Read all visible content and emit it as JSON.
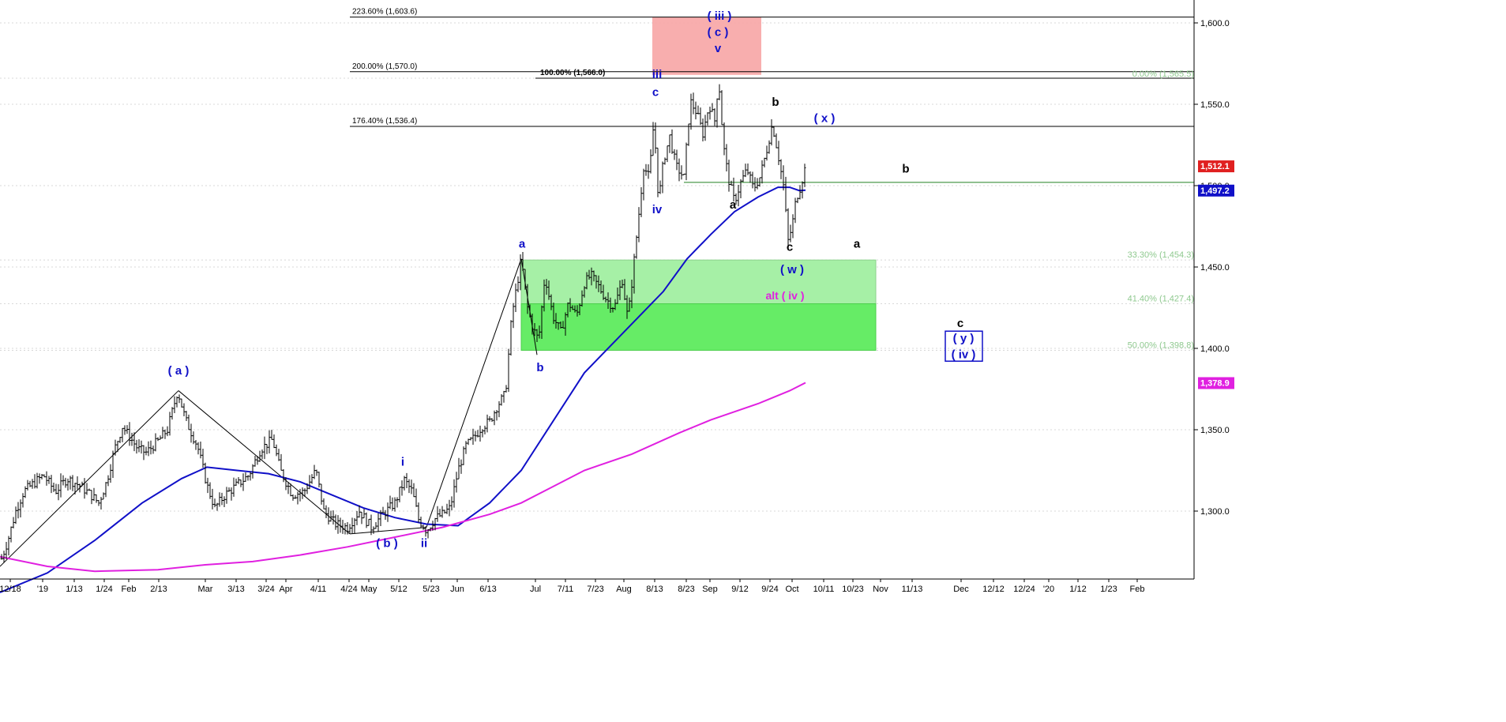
{
  "chart_data": {
    "type": "candlestick",
    "title": "",
    "y_axis_ticks": [
      "1,300.0",
      "1,350.0",
      "1,400.0",
      "1,450.0",
      "1,500.0",
      "1,550.0",
      "1,600.0"
    ],
    "ylim": [
      1256,
      1612
    ],
    "x_axis_ticks": [
      "12/18",
      "'19",
      "1/13",
      "1/24",
      "Feb",
      "2/13",
      "Mar",
      "3/13",
      "3/24",
      "Apr",
      "4/11",
      "4/24",
      "May",
      "5/12",
      "5/23",
      "Jun",
      "6/13",
      "Jul",
      "7/11",
      "7/23",
      "Aug",
      "8/13",
      "8/23",
      "Sep",
      "9/12",
      "9/24",
      "Oct",
      "10/11",
      "10/23",
      "Nov",
      "11/13",
      "Dec",
      "12/12",
      "12/24",
      "'20",
      "1/12",
      "1/23",
      "Feb"
    ],
    "price_path": [
      [
        0,
        1268
      ],
      [
        10,
        1282
      ],
      [
        20,
        1300
      ],
      [
        30,
        1312
      ],
      [
        40,
        1316
      ],
      [
        55,
        1322
      ],
      [
        70,
        1312
      ],
      [
        85,
        1320
      ],
      [
        100,
        1316
      ],
      [
        115,
        1310
      ],
      [
        125,
        1305
      ],
      [
        135,
        1318
      ],
      [
        145,
        1338
      ],
      [
        155,
        1352
      ],
      [
        165,
        1345
      ],
      [
        175,
        1338
      ],
      [
        185,
        1336
      ],
      [
        200,
        1343
      ],
      [
        212,
        1350
      ],
      [
        225,
        1374
      ],
      [
        235,
        1356
      ],
      [
        250,
        1340
      ],
      [
        262,
        1316
      ],
      [
        272,
        1302
      ],
      [
        285,
        1310
      ],
      [
        300,
        1316
      ],
      [
        315,
        1322
      ],
      [
        330,
        1338
      ],
      [
        345,
        1344
      ],
      [
        355,
        1325
      ],
      [
        370,
        1310
      ],
      [
        385,
        1312
      ],
      [
        400,
        1325
      ],
      [
        410,
        1300
      ],
      [
        425,
        1292
      ],
      [
        440,
        1290
      ],
      [
        455,
        1300
      ],
      [
        470,
        1290
      ],
      [
        485,
        1298
      ],
      [
        500,
        1305
      ],
      [
        512,
        1319
      ],
      [
        522,
        1312
      ],
      [
        530,
        1295
      ],
      [
        540,
        1288
      ],
      [
        550,
        1295
      ],
      [
        560,
        1298
      ],
      [
        570,
        1302
      ],
      [
        580,
        1325
      ],
      [
        590,
        1340
      ],
      [
        600,
        1345
      ],
      [
        610,
        1352
      ],
      [
        620,
        1355
      ],
      [
        630,
        1365
      ],
      [
        640,
        1372
      ],
      [
        648,
        1420
      ],
      [
        655,
        1440
      ],
      [
        660,
        1455
      ],
      [
        668,
        1425
      ],
      [
        675,
        1412
      ],
      [
        682,
        1405
      ],
      [
        690,
        1445
      ],
      [
        700,
        1420
      ],
      [
        710,
        1410
      ],
      [
        720,
        1428
      ],
      [
        730,
        1420
      ],
      [
        740,
        1440
      ],
      [
        748,
        1445
      ],
      [
        758,
        1438
      ],
      [
        768,
        1430
      ],
      [
        778,
        1425
      ],
      [
        788,
        1442
      ],
      [
        795,
        1418
      ],
      [
        800,
        1440
      ],
      [
        808,
        1478
      ],
      [
        815,
        1512
      ],
      [
        822,
        1505
      ],
      [
        828,
        1540
      ],
      [
        834,
        1490
      ],
      [
        840,
        1515
      ],
      [
        848,
        1530
      ],
      [
        856,
        1512
      ],
      [
        866,
        1505
      ],
      [
        874,
        1552
      ],
      [
        882,
        1545
      ],
      [
        890,
        1532
      ],
      [
        898,
        1550
      ],
      [
        905,
        1540
      ],
      [
        910,
        1566
      ],
      [
        916,
        1525
      ],
      [
        922,
        1505
      ],
      [
        930,
        1490
      ],
      [
        938,
        1502
      ],
      [
        946,
        1510
      ],
      [
        954,
        1498
      ],
      [
        962,
        1505
      ],
      [
        970,
        1520
      ],
      [
        978,
        1538
      ],
      [
        985,
        1520
      ],
      [
        992,
        1500
      ],
      [
        998,
        1466
      ],
      [
        1003,
        1475
      ],
      [
        1008,
        1492
      ],
      [
        1014,
        1500
      ],
      [
        1020,
        1512
      ]
    ],
    "series": [
      {
        "name": "",
        "color": "#1010c8",
        "points": [
          [
            0,
            1250
          ],
          [
            60,
            1262
          ],
          [
            120,
            1282
          ],
          [
            180,
            1305
          ],
          [
            230,
            1320
          ],
          [
            262,
            1327
          ],
          [
            300,
            1325
          ],
          [
            340,
            1323
          ],
          [
            380,
            1318
          ],
          [
            420,
            1310
          ],
          [
            460,
            1302
          ],
          [
            500,
            1296
          ],
          [
            540,
            1292
          ],
          [
            580,
            1291
          ],
          [
            620,
            1305
          ],
          [
            660,
            1325
          ],
          [
            700,
            1355
          ],
          [
            740,
            1385
          ],
          [
            780,
            1405
          ],
          [
            810,
            1420
          ],
          [
            840,
            1435
          ],
          [
            870,
            1455
          ],
          [
            900,
            1470
          ],
          [
            930,
            1484
          ],
          [
            960,
            1493
          ],
          [
            985,
            1499
          ],
          [
            1000,
            1499
          ],
          [
            1012,
            1497
          ],
          [
            1020,
            1497.2
          ]
        ]
      },
      {
        "name": "",
        "color": "#e020e0",
        "points": [
          [
            0,
            1272
          ],
          [
            60,
            1266
          ],
          [
            120,
            1263
          ],
          [
            200,
            1264
          ],
          [
            260,
            1267
          ],
          [
            320,
            1269
          ],
          [
            380,
            1273
          ],
          [
            440,
            1278
          ],
          [
            500,
            1284
          ],
          [
            560,
            1290
          ],
          [
            620,
            1298
          ],
          [
            660,
            1305
          ],
          [
            700,
            1315
          ],
          [
            740,
            1325
          ],
          [
            800,
            1335
          ],
          [
            860,
            1348
          ],
          [
            900,
            1356
          ],
          [
            960,
            1366
          ],
          [
            1000,
            1374
          ],
          [
            1020,
            1378.9
          ]
        ]
      }
    ],
    "last_values": {
      "price": "1,512.1",
      "blue_ma": "1,497.2",
      "magenta_ma": "1,378.9"
    },
    "fib_levels": [
      {
        "label": "223.60% (1,603.6)",
        "value": 1603.6
      },
      {
        "label": "200.00% (1,570.0)",
        "value": 1570.0
      },
      {
        "label": "100.00% (1,566.0)",
        "value": 1566.0
      },
      {
        "label": "176.40% (1,536.4)",
        "value": 1536.4
      },
      {
        "label": "0.00% (1,565.5)",
        "value": 1565.5
      },
      {
        "label": "33.30% (1,454.3)",
        "value": 1454.3
      },
      {
        "label": "41.40% (1,427.4)",
        "value": 1427.4
      },
      {
        "label": "50.00% (1,398.8)",
        "value": 1398.8
      }
    ],
    "horizontal_line": {
      "value": 1502,
      "color": "#208020"
    },
    "wave_labels": [
      {
        "text": "( a )",
        "color": "blue",
        "x": 226,
        "y": 1384
      },
      {
        "text": "( b )",
        "color": "blue",
        "x": 490,
        "y": 1278
      },
      {
        "text": "i",
        "color": "blue",
        "x": 510,
        "y": 1328
      },
      {
        "text": "ii",
        "color": "blue",
        "x": 537,
        "y": 1278
      },
      {
        "text": "a",
        "color": "blue",
        "x": 661,
        "y": 1462
      },
      {
        "text": "b",
        "color": "blue",
        "x": 684,
        "y": 1386
      },
      {
        "text": "iii",
        "color": "blue",
        "x": 832,
        "y": 1566
      },
      {
        "text": "c",
        "color": "blue",
        "x": 830,
        "y": 1555
      },
      {
        "text": "iv",
        "color": "blue",
        "x": 832,
        "y": 1483
      },
      {
        "text": "( iii )",
        "color": "blue",
        "x": 911,
        "y": 1602
      },
      {
        "text": "( c )",
        "color": "blue",
        "x": 909,
        "y": 1592
      },
      {
        "text": "v",
        "color": "blue",
        "x": 909,
        "y": 1582
      },
      {
        "text": "a",
        "color": "black",
        "x": 928,
        "y": 1486
      },
      {
        "text": "b",
        "color": "black",
        "x": 982,
        "y": 1549
      },
      {
        "text": "c",
        "color": "black",
        "x": 1000,
        "y": 1460
      },
      {
        "text": "( w )",
        "color": "blue",
        "x": 1003,
        "y": 1446
      },
      {
        "text": "( x )",
        "color": "blue",
        "x": 1044,
        "y": 1539
      },
      {
        "text": "alt ( iv )",
        "color": "magenta",
        "x": 994,
        "y": 1430
      },
      {
        "text": "b",
        "color": "black",
        "x": 1147,
        "y": 1508
      },
      {
        "text": "a",
        "color": "black",
        "x": 1085,
        "y": 1462
      },
      {
        "text": "c",
        "color": "black",
        "x": 1216,
        "y": 1413
      },
      {
        "text": "( y )",
        "color": "blue",
        "x": 1220,
        "y": 1404
      },
      {
        "text": "( iv )",
        "color": "blue",
        "x": 1220,
        "y": 1394
      }
    ],
    "grid": true
  }
}
